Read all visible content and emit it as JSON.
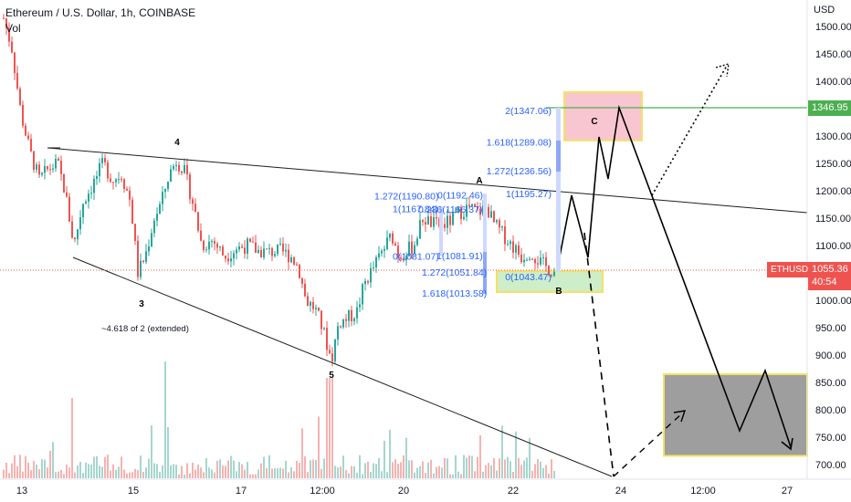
{
  "header": {
    "title": "Ethereum / U.S. Dollar, 1h, COINBASE",
    "volume_label": "Vol",
    "currency": "USD"
  },
  "chart_data": {
    "type": "candlestick",
    "symbol": "ETHUSD",
    "ylim": [
      680,
      1530
    ],
    "y_ticks": [
      700,
      750,
      800,
      850,
      900,
      950,
      1000,
      1050,
      1100,
      1150,
      1200,
      1250,
      1300,
      1350,
      1400,
      1450,
      1500
    ],
    "y_tick_labels": [
      "700.00",
      "750.00",
      "800.00",
      "850.00",
      "900.00",
      "950.00",
      "1000.00",
      "1050.00",
      "1100.00",
      "1150.00",
      "1200.00",
      "1250.00",
      "1300.00",
      "1350.00",
      "1400.00",
      "1450.00",
      "1500.00"
    ],
    "x_ticks": [
      "13",
      "15",
      "17",
      "12:00",
      "20",
      "22",
      "24",
      "12:00",
      "27"
    ],
    "current_price": {
      "symbol": "ETHUSD",
      "value": "1055.36",
      "countdown": "40:54",
      "y": 1055.36
    },
    "level_line": {
      "value": "1346.95",
      "y": 1346.95
    },
    "wave_labels": [
      {
        "text": "4",
        "y": 1290
      },
      {
        "text": "3",
        "y": 995
      },
      {
        "text": "5",
        "y": 865
      },
      {
        "text": "A",
        "y": 1220
      },
      {
        "text": "B",
        "y": 1018
      },
      {
        "text": "C",
        "y": 1328
      }
    ],
    "annotation": "~4.618 of 2 (extended)",
    "fib_left": [
      {
        "text": "1.272(1190.80)",
        "y": 1190.8
      },
      {
        "text": "0(1192.46)",
        "y": 1192.46
      },
      {
        "text": "1(1167.84)",
        "y": 1167.84
      },
      {
        "text": "0.236(1166.37)",
        "y": 1166.37
      },
      {
        "text": "0(1081.07)",
        "y": 1081.07
      },
      {
        "text": "1(1081.91)",
        "y": 1081.91
      },
      {
        "text": "1.272(1051.84)",
        "y": 1051.84
      },
      {
        "text": "1.618(1013.58)",
        "y": 1013.58
      }
    ],
    "fib_right": [
      {
        "text": "2(1347.06)",
        "y": 1347.06
      },
      {
        "text": "1.618(1289.08)",
        "y": 1289.08
      },
      {
        "text": "1.272(1236.56)",
        "y": 1236.56
      },
      {
        "text": "1(1195.27)",
        "y": 1195.27
      },
      {
        "text": "0(1043.47)",
        "y": 1043.47
      }
    ],
    "projection_path": [
      {
        "x": 0,
        "y": 1060
      },
      {
        "x": 1,
        "y": 1188
      },
      {
        "x": 2,
        "y": 1100
      },
      {
        "x": 3,
        "y": 1310
      },
      {
        "x": 4,
        "y": 1230
      },
      {
        "x": 5,
        "y": 1345
      },
      {
        "x": 6,
        "y": 760
      },
      {
        "x": 7,
        "y": 870
      },
      {
        "x": 8,
        "y": 735
      }
    ],
    "zones": [
      {
        "name": "target-top",
        "top": 1380,
        "bottom": 1292,
        "color": "#f7c6d0",
        "border": "#f5e066"
      },
      {
        "name": "target-b",
        "top": 1053,
        "bottom": 1015,
        "color": "#cdeec9",
        "border": "#f5e066"
      },
      {
        "name": "target-low",
        "top": 865,
        "bottom": 716,
        "color": "#9e9e9e",
        "border": "#f5e066"
      }
    ]
  },
  "colors": {
    "up": "#26a69a",
    "down": "#ef5350",
    "vol_up": "#a5d6cf",
    "vol_down": "#f7b2b0",
    "fib": "#2962ff",
    "level": "#4caf50",
    "price_tag": "#ef5350"
  }
}
